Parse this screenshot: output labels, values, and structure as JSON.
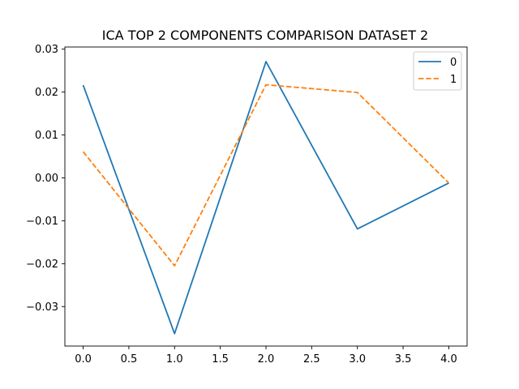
{
  "chart_data": {
    "type": "line",
    "title": "ICA TOP 2 COMPONENTS COMPARISON DATASET 2",
    "xlabel": "",
    "ylabel": "",
    "x": [
      0.0,
      1.0,
      2.0,
      3.0,
      4.0
    ],
    "xlim": [
      -0.2,
      4.2
    ],
    "ylim": [
      -0.0392,
      0.0305
    ],
    "x_ticks": [
      "0.0",
      "0.5",
      "1.0",
      "1.5",
      "2.0",
      "2.5",
      "3.0",
      "3.5",
      "4.0"
    ],
    "x_tick_values": [
      0.0,
      0.5,
      1.0,
      1.5,
      2.0,
      2.5,
      3.0,
      3.5,
      4.0
    ],
    "y_ticks": [
      "0.03",
      "0.02",
      "0.01",
      "0.00",
      "−0.01",
      "−0.02",
      "−0.03"
    ],
    "y_tick_values": [
      0.03,
      0.02,
      0.01,
      0.0,
      -0.01,
      -0.02,
      -0.03
    ],
    "grid": false,
    "legend_position": "top-right",
    "series": [
      {
        "name": "0",
        "values": [
          0.0216,
          -0.0363,
          0.0271,
          -0.0119,
          -0.0012
        ],
        "color": "#1f77b4",
        "style": "solid"
      },
      {
        "name": "1",
        "values": [
          0.0061,
          -0.0205,
          0.0217,
          0.0199,
          -0.0012
        ],
        "color": "#ff7f0e",
        "style": "dashed"
      }
    ]
  }
}
